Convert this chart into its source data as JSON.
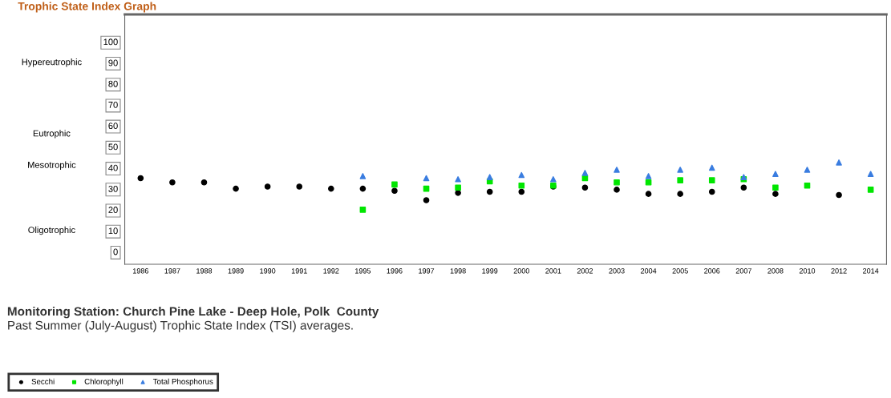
{
  "chart_data": {
    "type": "scatter",
    "title": "Trophic State Index Graph",
    "categories": [
      "1986",
      "1987",
      "1988",
      "1989",
      "1990",
      "1991",
      "1992",
      "1995",
      "1996",
      "1997",
      "1998",
      "1999",
      "2000",
      "2001",
      "2002",
      "2003",
      "2004",
      "2005",
      "2006",
      "2007",
      "2008",
      "2010",
      "2012",
      "2014"
    ],
    "series": [
      {
        "name": "Secchi",
        "color": "#000000",
        "marker": "circle",
        "values": [
          35,
          33,
          33,
          30,
          31,
          31,
          30,
          30,
          29,
          24.5,
          28,
          28.5,
          28.5,
          31,
          30.5,
          29.5,
          27.5,
          27.5,
          28.5,
          30.5,
          27.5,
          null,
          27,
          null
        ]
      },
      {
        "name": "Chlorophyll",
        "color": "#00e600",
        "marker": "square",
        "values": [
          null,
          null,
          null,
          null,
          null,
          null,
          null,
          20,
          32,
          30,
          30.5,
          33.5,
          31.5,
          31.5,
          35,
          33,
          33,
          34,
          34,
          34.5,
          30.5,
          31.5,
          null,
          29.5
        ]
      },
      {
        "name": "Total Phosphorus",
        "color": "#3a7de0",
        "marker": "triangle",
        "values": [
          null,
          null,
          null,
          null,
          null,
          null,
          null,
          36,
          null,
          35,
          34.5,
          35.5,
          36.5,
          34.5,
          37.5,
          39,
          36,
          39,
          40,
          35.5,
          37,
          39,
          42.5,
          37
        ]
      }
    ],
    "ylim": [
      -6,
      113
    ],
    "yticks": [
      0,
      10,
      20,
      30,
      40,
      50,
      60,
      70,
      80,
      90,
      100
    ],
    "grid": false,
    "legend": "bottom",
    "annotations": [
      "Hypereutrophic",
      "Eutrophic",
      "Mesotrophic",
      "Oligotrophic",
      "Monitoring Station: Church Pine Lake - Deep Hole, Polk  County",
      "Past Summer (July-August) Trophic State Index (TSI) averages."
    ]
  }
}
